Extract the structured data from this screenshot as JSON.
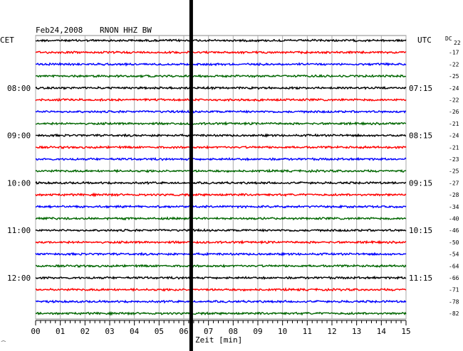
{
  "header": {
    "date": "Feb24,2008",
    "station": "RNON HHZ BW",
    "left_zone": "CET",
    "right_zone": "UTC",
    "dc_label": "DC",
    "dc_top_value": "22"
  },
  "colors": {
    "trace_cycle": [
      "#000000",
      "#ff0000",
      "#0000ff",
      "#006600"
    ],
    "grid": "#aaaaaa",
    "event_bar": "#000000"
  },
  "chart_data": {
    "type": "line",
    "title": "Feb24,2008   RNON HHZ BW",
    "xlabel": "Zeit [min]",
    "xlim": [
      0,
      15
    ],
    "x_ticks": [
      "00",
      "01",
      "02",
      "03",
      "04",
      "05",
      "06",
      "07",
      "08",
      "09",
      "10",
      "11",
      "12",
      "13",
      "14",
      "15"
    ],
    "row_count": 24,
    "left_hour_labels": [
      {
        "row": 4,
        "label": "08:00"
      },
      {
        "row": 8,
        "label": "09:00"
      },
      {
        "row": 12,
        "label": "10:00"
      },
      {
        "row": 16,
        "label": "11:00"
      },
      {
        "row": 20,
        "label": "12:00"
      }
    ],
    "right_hour_labels": [
      {
        "row": 4,
        "label": "07:15"
      },
      {
        "row": 8,
        "label": "08:15"
      },
      {
        "row": 12,
        "label": "09:15"
      },
      {
        "row": 16,
        "label": "10:15"
      },
      {
        "row": 20,
        "label": "11:15"
      }
    ],
    "dc_offsets": [
      "-17",
      "-22",
      "-25",
      "-24",
      "-22",
      "-26",
      "-21",
      "-24",
      "-21",
      "-23",
      "-25",
      "-27",
      "-28",
      "-34",
      "-40",
      "-46",
      "-50",
      "-54",
      "-64",
      "-66",
      "-71",
      "-78",
      "-82"
    ],
    "event_minute": 6.3
  }
}
